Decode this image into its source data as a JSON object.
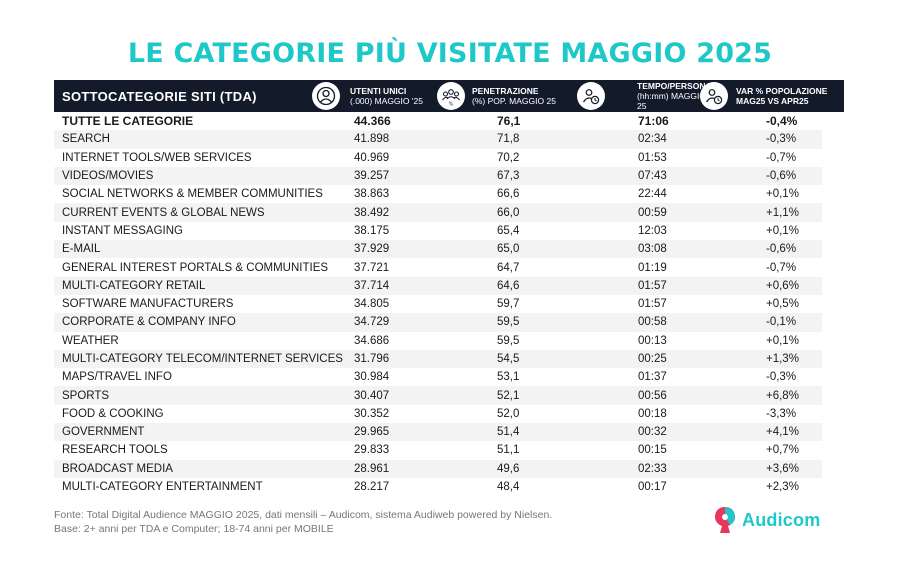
{
  "title": "LE CATEGORIE PIÙ VISITATE MAGGIO 2025",
  "header": {
    "first": "SOTTOCATEGORIE SITI  (TDA)",
    "users_label_1": "UTENTI UNICI",
    "users_label_2": "(.000) MAGGIO '25",
    "pen_label_1": "PENETRAZIONE",
    "pen_label_2": "(%) POP. MAGGIO 25",
    "pen_icon_symbol": "%",
    "time_label_1": "TEMPO/PERSONA",
    "time_label_2": "(hh:mm) MAGGIO",
    "time_label_3": "25",
    "var_label_1": "VAR % POPOLAZIONE",
    "var_label_2": "MAG25 VS APR25",
    "icons": [
      "user-icon",
      "group-icon",
      "user-clock-icon",
      "user-clock-icon"
    ]
  },
  "rows": [
    {
      "name": "TUTTE LE CATEGORIE",
      "users": "44.366",
      "pen": "76,1",
      "time": "71:06",
      "var": "-0,4%"
    },
    {
      "name": "SEARCH",
      "users": "41.898",
      "pen": "71,8",
      "time": "02:34",
      "var": "-0,3%"
    },
    {
      "name": "INTERNET TOOLS/WEB SERVICES",
      "users": "40.969",
      "pen": "70,2",
      "time": "01:53",
      "var": "-0,7%"
    },
    {
      "name": "VIDEOS/MOVIES",
      "users": "39.257",
      "pen": "67,3",
      "time": "07:43",
      "var": "-0,6%"
    },
    {
      "name": "SOCIAL NETWORKS & MEMBER COMMUNITIES",
      "users": "38.863",
      "pen": "66,6",
      "time": "22:44",
      "var": "+0,1%"
    },
    {
      "name": "CURRENT EVENTS & GLOBAL NEWS",
      "users": "38.492",
      "pen": "66,0",
      "time": "00:59",
      "var": "+1,1%"
    },
    {
      "name": "INSTANT MESSAGING",
      "users": "38.175",
      "pen": "65,4",
      "time": "12:03",
      "var": "+0,1%"
    },
    {
      "name": "E-MAIL",
      "users": "37.929",
      "pen": "65,0",
      "time": "03:08",
      "var": "-0,6%"
    },
    {
      "name": "GENERAL INTEREST PORTALS & COMMUNITIES",
      "users": "37.721",
      "pen": "64,7",
      "time": "01:19",
      "var": "-0,7%"
    },
    {
      "name": "MULTI-CATEGORY RETAIL",
      "users": "37.714",
      "pen": "64,6",
      "time": "01:57",
      "var": "+0,6%"
    },
    {
      "name": "SOFTWARE MANUFACTURERS",
      "users": "34.805",
      "pen": "59,7",
      "time": "01:57",
      "var": "+0,5%"
    },
    {
      "name": "CORPORATE & COMPANY INFO",
      "users": "34.729",
      "pen": "59,5",
      "time": "00:58",
      "var": "-0,1%"
    },
    {
      "name": "WEATHER",
      "users": "34.686",
      "pen": "59,5",
      "time": "00:13",
      "var": "+0,1%"
    },
    {
      "name": "MULTI-CATEGORY TELECOM/INTERNET SERVICES",
      "users": "31.796",
      "pen": "54,5",
      "time": "00:25",
      "var": "+1,3%"
    },
    {
      "name": "MAPS/TRAVEL INFO",
      "users": "30.984",
      "pen": "53,1",
      "time": "01:37",
      "var": "-0,3%"
    },
    {
      "name": "SPORTS",
      "users": "30.407",
      "pen": "52,1",
      "time": "00:56",
      "var": "+6,8%"
    },
    {
      "name": "FOOD & COOKING",
      "users": "30.352",
      "pen": "52,0",
      "time": "00:18",
      "var": "-3,3%"
    },
    {
      "name": "GOVERNMENT",
      "users": "29.965",
      "pen": "51,4",
      "time": "00:32",
      "var": "+4,1%"
    },
    {
      "name": "RESEARCH TOOLS",
      "users": "29.833",
      "pen": "51,1",
      "time": "00:15",
      "var": "+0,7%"
    },
    {
      "name": "BROADCAST MEDIA",
      "users": "28.961",
      "pen": "49,6",
      "time": "02:33",
      "var": "+3,6%"
    },
    {
      "name": "MULTI-CATEGORY ENTERTAINMENT",
      "users": "28.217",
      "pen": "48,4",
      "time": "00:17",
      "var": "+2,3%"
    }
  ],
  "footer": {
    "line1": "Fonte: Total Digital Audience MAGGIO 2025, dati mensili – Audicom, sistema Audiweb powered by Nielsen.",
    "line2": "Base: 2+ anni per TDA e Computer; 18-74 anni per MOBILE"
  },
  "logo": {
    "text": "Audicom",
    "icon": "audicom-logo-icon"
  },
  "colors": {
    "accent": "#1ec8c8",
    "header_bg": "#131a2a",
    "row_shade": "#f3f3f3",
    "footer_text": "#777777"
  }
}
